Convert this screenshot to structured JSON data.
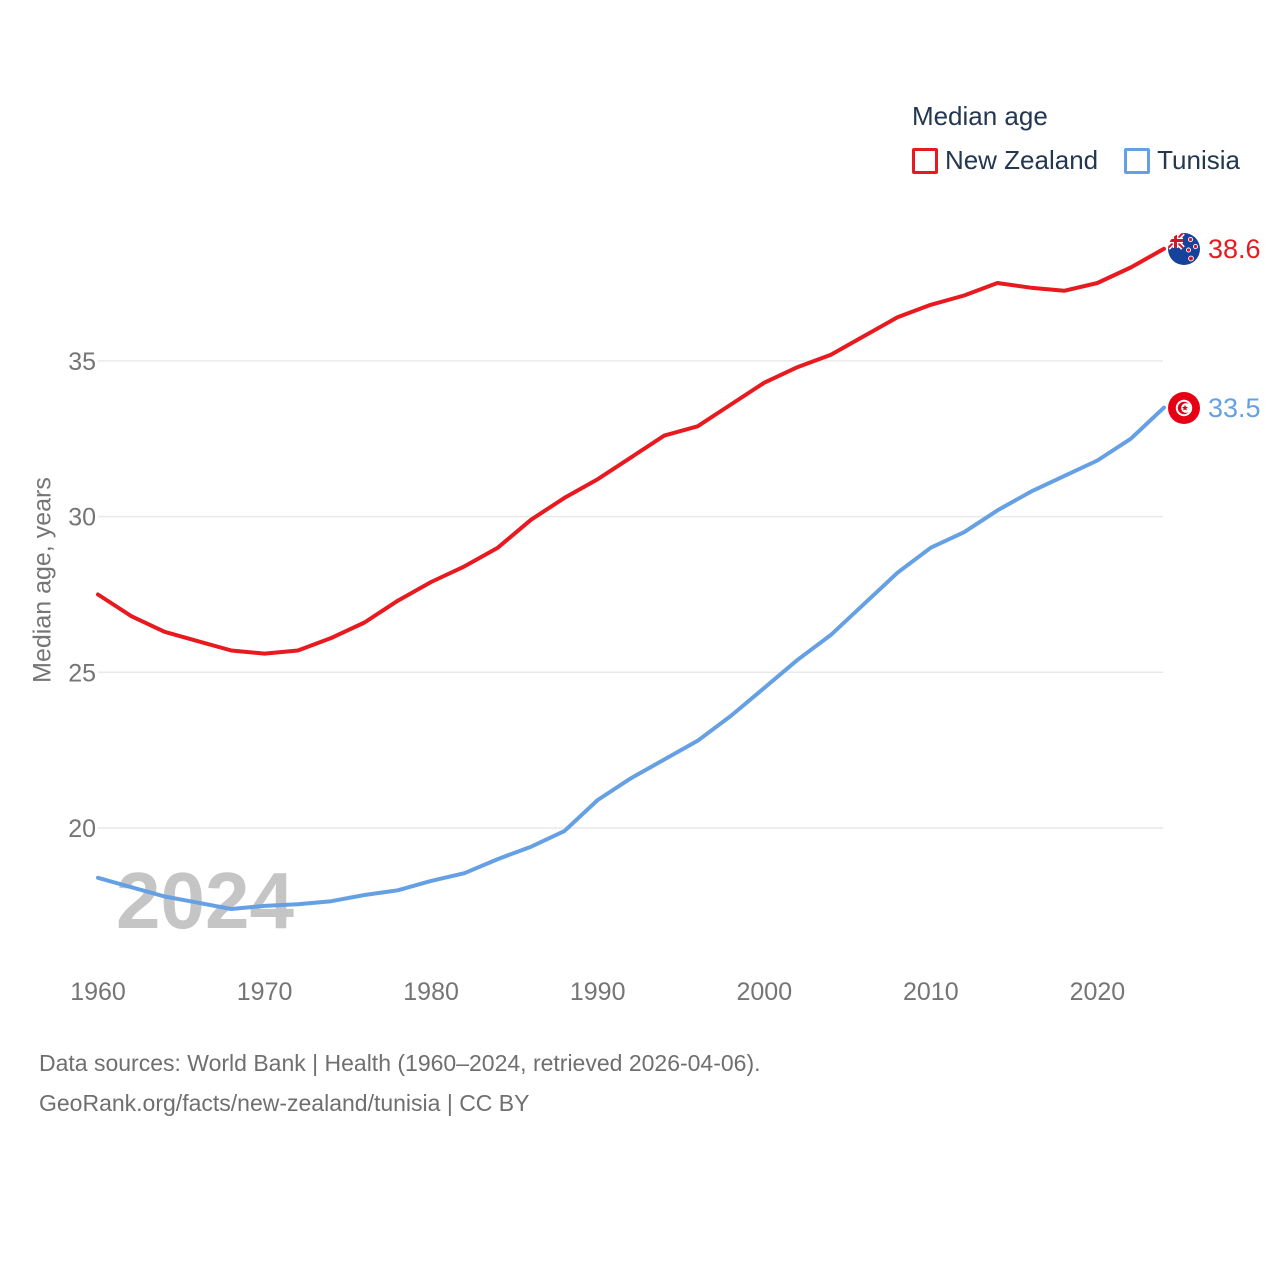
{
  "colors": {
    "new_zealand": "#e8191f",
    "tunisia": "#64a0e3",
    "navy_text": "#233750",
    "tick_text": "#757575",
    "gridline": "#e9e9e9",
    "watermark": "#c5c5c5",
    "footer_text": "#6f6f6f",
    "nz_flag_blue": "#17429b",
    "flag_red": "#e70013"
  },
  "icons": {
    "nz_flag": "new-zealand-flag-icon",
    "tn_flag": "tunisia-flag-icon",
    "legend_swatch_nz": "red-outline-square",
    "legend_swatch_tn": "blue-outline-square"
  },
  "footer": {
    "line1": "Data sources: World Bank | Health (1960–2024, retrieved 2026-04-06).",
    "line2": "GeoRank.org/facts/new-zealand/tunisia | CC BY"
  },
  "chart_data": {
    "type": "line",
    "title": "Median age",
    "xlabel": "",
    "ylabel": "Median age, years",
    "watermark": "2024",
    "grid": "horizontal",
    "legend_position": "top-right",
    "x_range": [
      1960,
      2024
    ],
    "ylim": [
      17,
      39.5
    ],
    "y_ticks": [
      20,
      25,
      30,
      35
    ],
    "x_ticks": [
      1960,
      1970,
      1980,
      1990,
      2000,
      2010,
      2020
    ],
    "years": [
      1960,
      1962,
      1964,
      1966,
      1968,
      1970,
      1972,
      1974,
      1976,
      1978,
      1980,
      1982,
      1984,
      1986,
      1988,
      1990,
      1992,
      1994,
      1996,
      1998,
      2000,
      2002,
      2004,
      2006,
      2008,
      2010,
      2012,
      2014,
      2016,
      2018,
      2020,
      2022,
      2024
    ],
    "series": [
      {
        "name": "New Zealand",
        "color": "#e8191f",
        "end_label": "38.6",
        "values": [
          27.5,
          26.8,
          26.3,
          26.0,
          25.7,
          25.6,
          25.7,
          26.1,
          26.6,
          27.3,
          27.9,
          28.4,
          29.0,
          29.9,
          30.6,
          31.2,
          31.9,
          32.6,
          32.9,
          33.6,
          34.3,
          34.8,
          35.2,
          35.8,
          36.4,
          36.8,
          37.1,
          37.5,
          37.35,
          37.25,
          37.5,
          38.0,
          38.6
        ]
      },
      {
        "name": "Tunisia",
        "color": "#64a0e3",
        "end_label": "33.5",
        "values": [
          18.4,
          18.1,
          17.8,
          17.6,
          17.4,
          17.5,
          17.55,
          17.65,
          17.85,
          18.0,
          18.3,
          18.55,
          19.0,
          19.4,
          19.9,
          20.9,
          21.6,
          22.2,
          22.8,
          23.6,
          24.5,
          25.4,
          26.2,
          27.2,
          28.2,
          29.0,
          29.5,
          30.2,
          30.8,
          31.3,
          31.8,
          32.5,
          33.5
        ]
      }
    ]
  }
}
